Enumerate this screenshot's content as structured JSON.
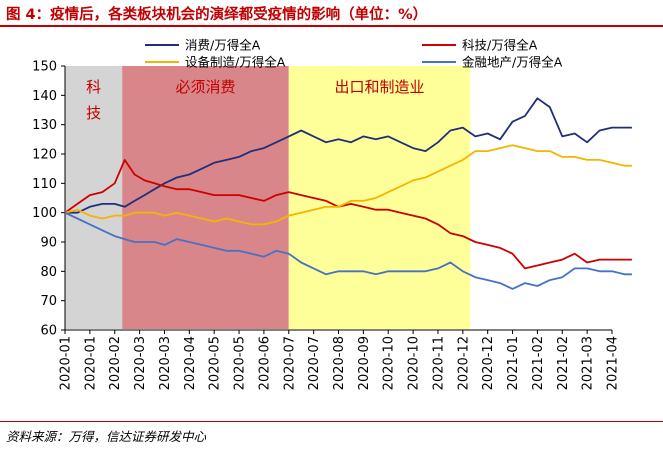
{
  "header": {
    "title": "图 4：疫情后，各类板块机会的演绎都受疫情的影响（单位：%）"
  },
  "footer": {
    "source": "资料来源：万得，信达证券研发中心"
  },
  "chart_data": {
    "type": "line",
    "x_ticks": [
      "2020-01",
      "2020-01",
      "2020-02",
      "2020-03",
      "2020-03",
      "2020-04",
      "2020-05",
      "2020-05",
      "2020-06",
      "2020-07",
      "2020-07",
      "2020-08",
      "2020-09",
      "2020-10",
      "2020-10",
      "2020-11",
      "2020-12",
      "2020-12",
      "2021-01",
      "2021-02",
      "2021-02",
      "2021-03",
      "2021-04"
    ],
    "ylim": [
      60,
      150
    ],
    "y_ticks": [
      60,
      70,
      80,
      90,
      100,
      110,
      120,
      130,
      140,
      150
    ],
    "legend_position": "top",
    "regions": [
      {
        "label": "科技",
        "from": 0.0,
        "to": 2.3,
        "color": "#d4d4d4"
      },
      {
        "label": "必须消费",
        "from": 2.3,
        "to": 9.0,
        "color": "#d9868b"
      },
      {
        "label": "出口和制造业",
        "from": 9.0,
        "to": 16.3,
        "color": "#ffff99"
      }
    ],
    "series": [
      {
        "name": "消费/万得全A",
        "color": "#1f2f7a",
        "points": [
          [
            0,
            100
          ],
          [
            0.5,
            100
          ],
          [
            1,
            102
          ],
          [
            1.5,
            103
          ],
          [
            2,
            103
          ],
          [
            2.4,
            102
          ],
          [
            2.8,
            104
          ],
          [
            3.2,
            106
          ],
          [
            3.6,
            108
          ],
          [
            4,
            110
          ],
          [
            4.5,
            112
          ],
          [
            5,
            113
          ],
          [
            5.5,
            115
          ],
          [
            6,
            117
          ],
          [
            6.5,
            118
          ],
          [
            7,
            119
          ],
          [
            7.5,
            121
          ],
          [
            8,
            122
          ],
          [
            8.5,
            124
          ],
          [
            9,
            126
          ],
          [
            9.5,
            128
          ],
          [
            10,
            126
          ],
          [
            10.5,
            124
          ],
          [
            11,
            125
          ],
          [
            11.5,
            124
          ],
          [
            12,
            126
          ],
          [
            12.5,
            125
          ],
          [
            13,
            126
          ],
          [
            13.5,
            124
          ],
          [
            14,
            122
          ],
          [
            14.5,
            121
          ],
          [
            15,
            124
          ],
          [
            15.5,
            128
          ],
          [
            16,
            129
          ],
          [
            16.5,
            126
          ],
          [
            17,
            127
          ],
          [
            17.5,
            125
          ],
          [
            18,
            131
          ],
          [
            18.5,
            133
          ],
          [
            19,
            139
          ],
          [
            19.5,
            136
          ],
          [
            20,
            126
          ],
          [
            20.5,
            127
          ],
          [
            21,
            124
          ],
          [
            21.5,
            128
          ],
          [
            22,
            129
          ],
          [
            22.5,
            129
          ],
          [
            22.8,
            129
          ]
        ]
      },
      {
        "name": "科技/万得全A",
        "color": "#cc0000",
        "points": [
          [
            0,
            100
          ],
          [
            0.5,
            103
          ],
          [
            1,
            106
          ],
          [
            1.5,
            107
          ],
          [
            2,
            110
          ],
          [
            2.4,
            118
          ],
          [
            2.8,
            113
          ],
          [
            3.2,
            111
          ],
          [
            3.6,
            110
          ],
          [
            4,
            109
          ],
          [
            4.5,
            108
          ],
          [
            5,
            108
          ],
          [
            5.5,
            107
          ],
          [
            6,
            106
          ],
          [
            6.5,
            106
          ],
          [
            7,
            106
          ],
          [
            7.5,
            105
          ],
          [
            8,
            104
          ],
          [
            8.5,
            106
          ],
          [
            9,
            107
          ],
          [
            9.5,
            106
          ],
          [
            10,
            105
          ],
          [
            10.5,
            104
          ],
          [
            11,
            102
          ],
          [
            11.5,
            103
          ],
          [
            12,
            102
          ],
          [
            12.5,
            101
          ],
          [
            13,
            101
          ],
          [
            13.5,
            100
          ],
          [
            14,
            99
          ],
          [
            14.5,
            98
          ],
          [
            15,
            96
          ],
          [
            15.5,
            93
          ],
          [
            16,
            92
          ],
          [
            16.5,
            90
          ],
          [
            17,
            89
          ],
          [
            17.5,
            88
          ],
          [
            18,
            86
          ],
          [
            18.5,
            81
          ],
          [
            19,
            82
          ],
          [
            19.5,
            83
          ],
          [
            20,
            84
          ],
          [
            20.5,
            86
          ],
          [
            21,
            83
          ],
          [
            21.5,
            84
          ],
          [
            22,
            84
          ],
          [
            22.5,
            84
          ],
          [
            22.8,
            84
          ]
        ]
      },
      {
        "name": "设备制造/万得全A",
        "color": "#f5b400",
        "points": [
          [
            0,
            100
          ],
          [
            0.5,
            101
          ],
          [
            1,
            99
          ],
          [
            1.5,
            98
          ],
          [
            2,
            99
          ],
          [
            2.4,
            99
          ],
          [
            2.8,
            100
          ],
          [
            3.2,
            100
          ],
          [
            3.6,
            100
          ],
          [
            4,
            99
          ],
          [
            4.5,
            100
          ],
          [
            5,
            99
          ],
          [
            5.5,
            98
          ],
          [
            6,
            97
          ],
          [
            6.5,
            98
          ],
          [
            7,
            97
          ],
          [
            7.5,
            96
          ],
          [
            8,
            96
          ],
          [
            8.5,
            97
          ],
          [
            9,
            99
          ],
          [
            9.5,
            100
          ],
          [
            10,
            101
          ],
          [
            10.5,
            102
          ],
          [
            11,
            102
          ],
          [
            11.5,
            104
          ],
          [
            12,
            104
          ],
          [
            12.5,
            105
          ],
          [
            13,
            107
          ],
          [
            13.5,
            109
          ],
          [
            14,
            111
          ],
          [
            14.5,
            112
          ],
          [
            15,
            114
          ],
          [
            15.5,
            116
          ],
          [
            16,
            118
          ],
          [
            16.5,
            121
          ],
          [
            17,
            121
          ],
          [
            17.5,
            122
          ],
          [
            18,
            123
          ],
          [
            18.5,
            122
          ],
          [
            19,
            121
          ],
          [
            19.5,
            121
          ],
          [
            20,
            119
          ],
          [
            20.5,
            119
          ],
          [
            21,
            118
          ],
          [
            21.5,
            118
          ],
          [
            22,
            117
          ],
          [
            22.5,
            116
          ],
          [
            22.8,
            116
          ]
        ]
      },
      {
        "name": "金融地产/万得全A",
        "color": "#4472c4",
        "points": [
          [
            0,
            100
          ],
          [
            0.5,
            98
          ],
          [
            1,
            96
          ],
          [
            1.5,
            94
          ],
          [
            2,
            92
          ],
          [
            2.4,
            91
          ],
          [
            2.8,
            90
          ],
          [
            3.2,
            90
          ],
          [
            3.6,
            90
          ],
          [
            4,
            89
          ],
          [
            4.5,
            91
          ],
          [
            5,
            90
          ],
          [
            5.5,
            89
          ],
          [
            6,
            88
          ],
          [
            6.5,
            87
          ],
          [
            7,
            87
          ],
          [
            7.5,
            86
          ],
          [
            8,
            85
          ],
          [
            8.5,
            87
          ],
          [
            9,
            86
          ],
          [
            9.5,
            83
          ],
          [
            10,
            81
          ],
          [
            10.5,
            79
          ],
          [
            11,
            80
          ],
          [
            11.5,
            80
          ],
          [
            12,
            80
          ],
          [
            12.5,
            79
          ],
          [
            13,
            80
          ],
          [
            13.5,
            80
          ],
          [
            14,
            80
          ],
          [
            14.5,
            80
          ],
          [
            15,
            81
          ],
          [
            15.5,
            83
          ],
          [
            16,
            80
          ],
          [
            16.5,
            78
          ],
          [
            17,
            77
          ],
          [
            17.5,
            76
          ],
          [
            18,
            74
          ],
          [
            18.5,
            76
          ],
          [
            19,
            75
          ],
          [
            19.5,
            77
          ],
          [
            20,
            78
          ],
          [
            20.5,
            81
          ],
          [
            21,
            81
          ],
          [
            21.5,
            80
          ],
          [
            22,
            80
          ],
          [
            22.5,
            79
          ],
          [
            22.8,
            79
          ]
        ]
      }
    ]
  }
}
